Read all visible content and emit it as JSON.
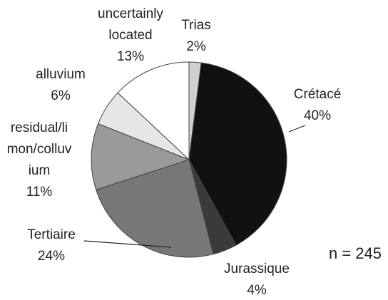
{
  "chart_data": {
    "type": "pie",
    "categories": [
      "Trias",
      "Crétacé",
      "Jurassique",
      "Tertiaire",
      "residual/li\nmon/colluv\nium",
      "alluvium",
      "uncertainly\nlocated"
    ],
    "values": [
      2,
      40,
      4,
      24,
      11,
      6,
      13
    ],
    "value_labels": [
      "2%",
      "40%",
      "4%",
      "24%",
      "11%",
      "6%",
      "13%"
    ],
    "colors": [
      "#cfcfcf",
      "#111111",
      "#3a3a3a",
      "#777777",
      "#9a9a9a",
      "#e6e6e6",
      "#ffffff"
    ],
    "annotation": "n = 245"
  }
}
